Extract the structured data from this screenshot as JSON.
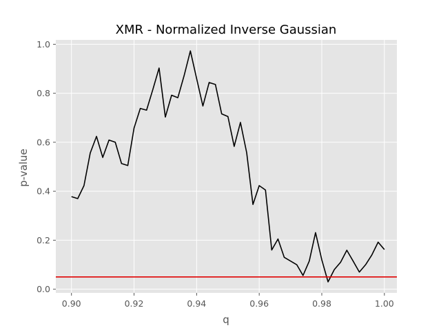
{
  "chart_data": {
    "type": "line",
    "title": "XMR - Normalized Inverse Gaussian",
    "xlabel": "q",
    "ylabel": "p-value",
    "xlim": [
      0.895,
      1.004
    ],
    "ylim": [
      -0.015,
      1.018
    ],
    "xticks": [
      0.9,
      0.92,
      0.94,
      0.96,
      0.98,
      1.0
    ],
    "xtick_labels": [
      "0.90",
      "0.92",
      "0.94",
      "0.96",
      "0.98",
      "1.00"
    ],
    "yticks": [
      0.0,
      0.2,
      0.4,
      0.6,
      0.8,
      1.0
    ],
    "ytick_labels": [
      "0.0",
      "0.2",
      "0.4",
      "0.6",
      "0.8",
      "1.0"
    ],
    "grid": true,
    "colors": {
      "plot_bg": "#e5e5e5",
      "grid": "#ffffff",
      "line": "#000000",
      "reference": "#e00000",
      "tick": "#555555"
    },
    "series": [
      {
        "x": [
          0.9,
          0.902,
          0.904,
          0.906,
          0.908,
          0.91,
          0.912,
          0.914,
          0.916,
          0.918,
          0.92,
          0.922,
          0.924,
          0.926,
          0.928,
          0.93,
          0.932,
          0.934,
          0.936,
          0.938,
          0.94,
          0.942,
          0.944,
          0.946,
          0.948,
          0.95,
          0.952,
          0.954,
          0.956,
          0.958,
          0.96,
          0.962,
          0.964,
          0.966,
          0.968,
          0.97,
          0.972,
          0.974,
          0.976,
          0.978,
          0.98,
          0.982,
          0.984,
          0.986,
          0.988,
          0.99,
          0.992,
          0.994,
          0.996,
          0.998,
          1.0
        ],
        "values": [
          0.378,
          0.37,
          0.423,
          0.556,
          0.624,
          0.538,
          0.609,
          0.6,
          0.513,
          0.505,
          0.658,
          0.738,
          0.731,
          0.815,
          0.903,
          0.703,
          0.792,
          0.782,
          0.872,
          0.973,
          0.86,
          0.748,
          0.844,
          0.836,
          0.716,
          0.705,
          0.583,
          0.681,
          0.557,
          0.346,
          0.423,
          0.405,
          0.16,
          0.205,
          0.13,
          0.115,
          0.1,
          0.056,
          0.115,
          0.231,
          0.12,
          0.03,
          0.08,
          0.11,
          0.159,
          0.115,
          0.07,
          0.1,
          0.14,
          0.192,
          0.162
        ]
      }
    ],
    "reference_line": {
      "y": 0.05
    }
  }
}
